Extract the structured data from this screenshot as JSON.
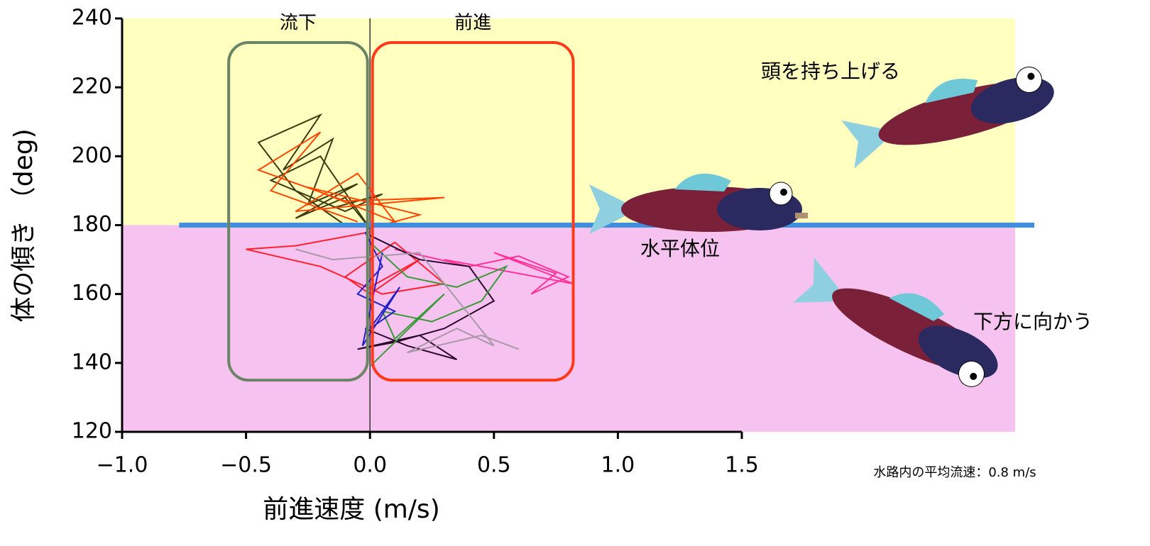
{
  "chart_data": {
    "type": "line",
    "xlabel": "前進速度 (m/s)",
    "ylabel": "体の傾き （deg)",
    "xlim": [
      -1.0,
      1.5
    ],
    "ylim": [
      120,
      240
    ],
    "xticks": [
      {
        "value": -1.0,
        "label": "−1.0"
      },
      {
        "value": -0.5,
        "label": "−0.5"
      },
      {
        "value": 0.0,
        "label": "0.0"
      },
      {
        "value": 0.5,
        "label": "0.5"
      },
      {
        "value": 1.0,
        "label": "1.0"
      },
      {
        "value": 1.5,
        "label": "1.5"
      }
    ],
    "yticks": [
      120,
      140,
      160,
      180,
      200,
      220,
      240
    ],
    "bands": [
      {
        "y": [
          180,
          240
        ],
        "color": "#ffffc0"
      },
      {
        "y": [
          120,
          180
        ],
        "color": "#f6c2f0"
      }
    ],
    "hline": {
      "y": 180,
      "x_start": -0.77,
      "color": "#3f8fe0"
    },
    "vline": {
      "x": 0.0,
      "color": "#333333"
    },
    "regions": [
      {
        "label": "流下",
        "x": [
          -0.57,
          -0.01
        ],
        "y": [
          135,
          233
        ],
        "color": "#6b8466"
      },
      {
        "label": "前進",
        "x": [
          0.01,
          0.82
        ],
        "y": [
          135,
          233
        ],
        "color": "#ff3a1a"
      }
    ],
    "annotations": [
      "頭を持ち上げる",
      "水平体位",
      "下方に向かう",
      "水路内の平均流速：0.8 m/s"
    ],
    "series": [
      {
        "color": "#3b3b10",
        "x": [
          -0.1,
          -0.3,
          -0.45,
          -0.2,
          -0.35,
          -0.15,
          -0.25,
          -0.05,
          -0.3,
          -0.1,
          0.0,
          -0.2,
          -0.4,
          -0.1,
          0.05,
          -0.15
        ],
        "values": [
          180,
          190,
          204,
          212,
          196,
          205,
          186,
          192,
          182,
          188,
          179,
          200,
          193,
          184,
          189,
          185
        ]
      },
      {
        "color": "#ff4500",
        "x": [
          -0.05,
          -0.4,
          -0.2,
          -0.45,
          -0.1,
          0.3,
          -0.3,
          -0.05,
          0.1,
          -0.25,
          0.2,
          0.05
        ],
        "values": [
          181,
          190,
          207,
          196,
          187,
          188,
          184,
          195,
          181,
          191,
          183,
          180
        ]
      },
      {
        "color": "#ff2030",
        "x": [
          0.0,
          -0.3,
          -0.5,
          -0.2,
          0.05,
          0.3,
          0.1,
          -0.1,
          0.0,
          0.2,
          0.0
        ],
        "values": [
          178,
          174,
          173,
          168,
          160,
          163,
          175,
          165,
          160,
          170,
          162
        ]
      },
      {
        "color": "#ff3399",
        "x": [
          0.1,
          0.4,
          0.6,
          0.8,
          0.65,
          0.75,
          0.5,
          0.82,
          0.3
        ],
        "values": [
          173,
          168,
          171,
          165,
          160,
          166,
          172,
          163,
          170
        ]
      },
      {
        "color": "#2a0a2a",
        "x": [
          0.0,
          0.2,
          0.4,
          0.5,
          0.3,
          0.1,
          -0.05,
          0.2,
          0.35,
          0.15,
          -0.02
        ],
        "values": [
          177,
          170,
          168,
          158,
          150,
          146,
          144,
          148,
          141,
          145,
          150
        ]
      },
      {
        "color": "#3a9a3a",
        "x": [
          0.0,
          0.15,
          0.35,
          0.55,
          0.45,
          0.25,
          0.05,
          0.1,
          0.3,
          0.0
        ],
        "values": [
          175,
          165,
          162,
          168,
          158,
          152,
          155,
          147,
          160,
          139
        ]
      },
      {
        "color": "#2020cc",
        "x": [
          -0.02,
          0.05,
          -0.05,
          0.1,
          0.0,
          0.12,
          -0.03,
          0.05
        ],
        "values": [
          178,
          168,
          160,
          155,
          150,
          162,
          145,
          172
        ]
      },
      {
        "color": "#a898a8",
        "x": [
          -0.3,
          -0.15,
          0.2,
          0.5,
          0.35,
          0.15,
          0.45,
          0.6
        ],
        "values": [
          173,
          170,
          172,
          145,
          150,
          143,
          148,
          144
        ]
      }
    ]
  }
}
